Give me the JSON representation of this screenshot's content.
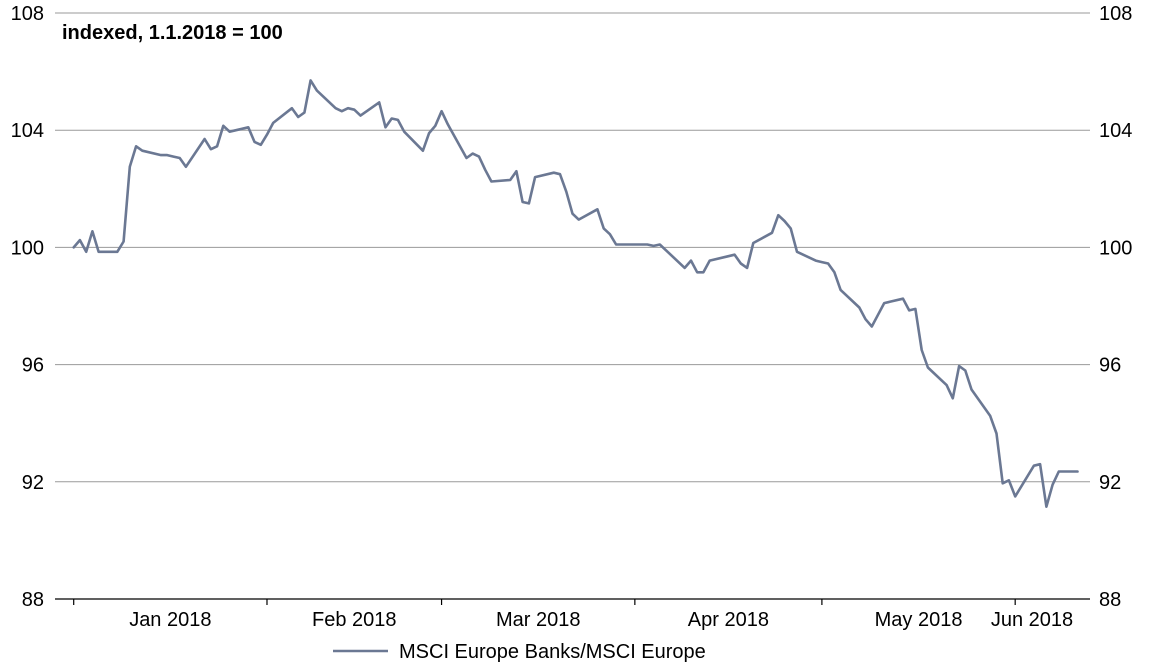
{
  "chart_data": {
    "type": "line",
    "subtitle": "indexed, 1.1.2018 = 100",
    "ylim": [
      88,
      108
    ],
    "yticks": [
      88,
      92,
      96,
      100,
      104,
      108
    ],
    "y_axes": "left and right (same scale)",
    "grid": "horizontal",
    "xlim_days": "2017-12-29 to 2018-06-13",
    "month_labels": [
      "Jan 2018",
      "Feb 2018",
      "Mar 2018",
      "Apr 2018",
      "May 2018",
      "Jun 2018"
    ],
    "legend_position": "bottom-center",
    "series": [
      {
        "name": "MSCI Europe Banks/MSCI Europe",
        "color": "#6b7893",
        "points": [
          [
            "2018-01-01",
            100.0
          ],
          [
            "2018-01-02",
            100.25
          ],
          [
            "2018-01-03",
            99.85
          ],
          [
            "2018-01-04",
            100.55
          ],
          [
            "2018-01-05",
            99.85
          ],
          [
            "2018-01-08",
            99.85
          ],
          [
            "2018-01-09",
            100.2
          ],
          [
            "2018-01-10",
            102.75
          ],
          [
            "2018-01-11",
            103.45
          ],
          [
            "2018-01-12",
            103.3
          ],
          [
            "2018-01-15",
            103.15
          ],
          [
            "2018-01-16",
            103.15
          ],
          [
            "2018-01-17",
            103.1
          ],
          [
            "2018-01-18",
            103.05
          ],
          [
            "2018-01-19",
            102.75
          ],
          [
            "2018-01-22",
            103.7
          ],
          [
            "2018-01-23",
            103.35
          ],
          [
            "2018-01-24",
            103.45
          ],
          [
            "2018-01-25",
            104.15
          ],
          [
            "2018-01-26",
            103.95
          ],
          [
            "2018-01-29",
            104.1
          ],
          [
            "2018-01-30",
            103.6
          ],
          [
            "2018-01-31",
            103.5
          ],
          [
            "2018-02-01",
            103.85
          ],
          [
            "2018-02-02",
            104.25
          ],
          [
            "2018-02-05",
            104.75
          ],
          [
            "2018-02-06",
            104.45
          ],
          [
            "2018-02-07",
            104.6
          ],
          [
            "2018-02-08",
            105.7
          ],
          [
            "2018-02-09",
            105.35
          ],
          [
            "2018-02-12",
            104.75
          ],
          [
            "2018-02-13",
            104.65
          ],
          [
            "2018-02-14",
            104.75
          ],
          [
            "2018-02-15",
            104.7
          ],
          [
            "2018-02-16",
            104.5
          ],
          [
            "2018-02-19",
            104.95
          ],
          [
            "2018-02-20",
            104.1
          ],
          [
            "2018-02-21",
            104.4
          ],
          [
            "2018-02-22",
            104.35
          ],
          [
            "2018-02-23",
            103.95
          ],
          [
            "2018-02-26",
            103.3
          ],
          [
            "2018-02-27",
            103.9
          ],
          [
            "2018-02-28",
            104.15
          ],
          [
            "2018-03-01",
            104.65
          ],
          [
            "2018-03-02",
            104.2
          ],
          [
            "2018-03-05",
            103.05
          ],
          [
            "2018-03-06",
            103.2
          ],
          [
            "2018-03-07",
            103.1
          ],
          [
            "2018-03-08",
            102.65
          ],
          [
            "2018-03-09",
            102.25
          ],
          [
            "2018-03-12",
            102.3
          ],
          [
            "2018-03-13",
            102.6
          ],
          [
            "2018-03-14",
            101.55
          ],
          [
            "2018-03-15",
            101.5
          ],
          [
            "2018-03-16",
            102.4
          ],
          [
            "2018-03-19",
            102.55
          ],
          [
            "2018-03-20",
            102.5
          ],
          [
            "2018-03-21",
            101.9
          ],
          [
            "2018-03-22",
            101.15
          ],
          [
            "2018-03-23",
            100.95
          ],
          [
            "2018-03-26",
            101.3
          ],
          [
            "2018-03-27",
            100.65
          ],
          [
            "2018-03-28",
            100.45
          ],
          [
            "2018-03-29",
            100.1
          ],
          [
            "2018-04-03",
            100.1
          ],
          [
            "2018-04-04",
            100.05
          ],
          [
            "2018-04-05",
            100.1
          ],
          [
            "2018-04-06",
            99.9
          ],
          [
            "2018-04-09",
            99.3
          ],
          [
            "2018-04-10",
            99.55
          ],
          [
            "2018-04-11",
            99.15
          ],
          [
            "2018-04-12",
            99.15
          ],
          [
            "2018-04-13",
            99.55
          ],
          [
            "2018-04-16",
            99.7
          ],
          [
            "2018-04-17",
            99.75
          ],
          [
            "2018-04-18",
            99.45
          ],
          [
            "2018-04-19",
            99.3
          ],
          [
            "2018-04-20",
            100.15
          ],
          [
            "2018-04-23",
            100.5
          ],
          [
            "2018-04-24",
            101.1
          ],
          [
            "2018-04-25",
            100.9
          ],
          [
            "2018-04-26",
            100.65
          ],
          [
            "2018-04-27",
            99.85
          ],
          [
            "2018-04-30",
            99.55
          ],
          [
            "2018-05-01",
            99.5
          ],
          [
            "2018-05-02",
            99.45
          ],
          [
            "2018-05-03",
            99.15
          ],
          [
            "2018-05-04",
            98.55
          ],
          [
            "2018-05-07",
            97.95
          ],
          [
            "2018-05-08",
            97.55
          ],
          [
            "2018-05-09",
            97.3
          ],
          [
            "2018-05-10",
            97.7
          ],
          [
            "2018-05-11",
            98.1
          ],
          [
            "2018-05-14",
            98.25
          ],
          [
            "2018-05-15",
            97.85
          ],
          [
            "2018-05-16",
            97.9
          ],
          [
            "2018-05-17",
            96.5
          ],
          [
            "2018-05-18",
            95.9
          ],
          [
            "2018-05-21",
            95.3
          ],
          [
            "2018-05-22",
            94.85
          ],
          [
            "2018-05-23",
            95.95
          ],
          [
            "2018-05-24",
            95.8
          ],
          [
            "2018-05-25",
            95.15
          ],
          [
            "2018-05-28",
            94.25
          ],
          [
            "2018-05-29",
            93.65
          ],
          [
            "2018-05-30",
            91.95
          ],
          [
            "2018-05-31",
            92.05
          ],
          [
            "2018-06-01",
            91.5
          ],
          [
            "2018-06-04",
            92.55
          ],
          [
            "2018-06-05",
            92.6
          ],
          [
            "2018-06-06",
            91.15
          ],
          [
            "2018-06-07",
            91.9
          ],
          [
            "2018-06-08",
            92.35
          ],
          [
            "2018-06-11",
            92.35
          ]
        ]
      }
    ]
  }
}
